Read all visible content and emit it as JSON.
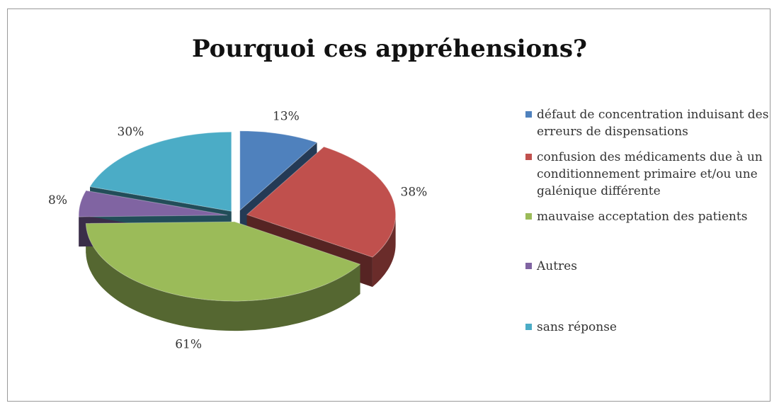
{
  "chart_data": {
    "type": "pie",
    "title": "Pourquoi ces appréhensions?",
    "categories": [
      "défaut de concentration induisant des erreurs de dispensations",
      "confusion des médicaments due à un conditionnement primaire et/ou une galénique différente",
      "mauvaise acceptation des patients",
      "Autres",
      "sans réponse"
    ],
    "values": [
      13,
      38,
      61,
      8,
      30
    ],
    "value_labels": [
      "13%",
      "38%",
      "61%",
      "8%",
      "30%"
    ],
    "colors": [
      "#4f81bd",
      "#c0504d",
      "#9bbb59",
      "#8064a2",
      "#4bacc6"
    ],
    "legend": "right"
  }
}
